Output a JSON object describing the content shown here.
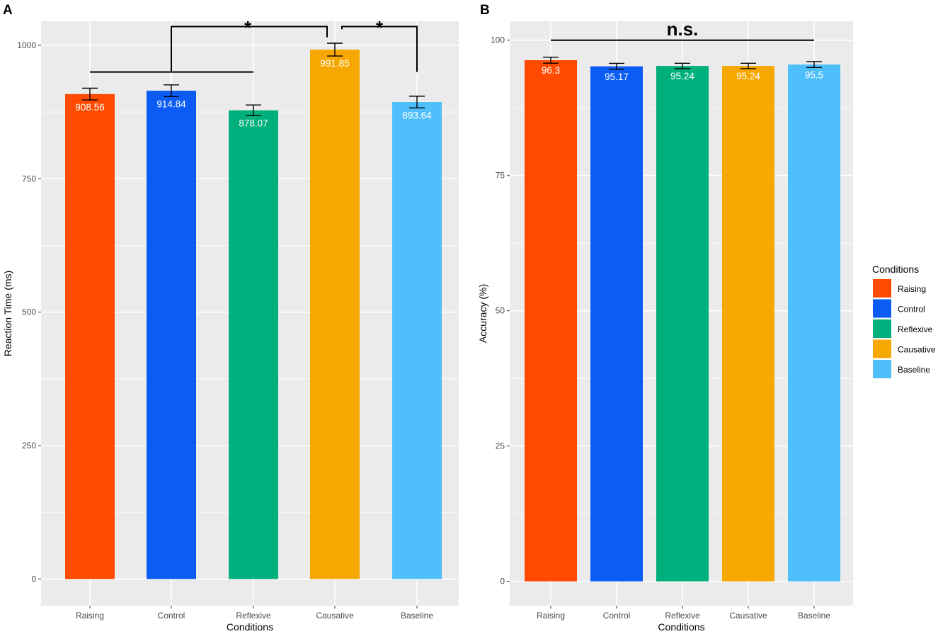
{
  "figure": {
    "legend": {
      "title": "Conditions",
      "entries": [
        {
          "label": "Raising",
          "color": "#FF4A00"
        },
        {
          "label": "Control",
          "color": "#0A5CF5"
        },
        {
          "label": "Reflexive",
          "color": "#00B07C"
        },
        {
          "label": "Causative",
          "color": "#F7A800"
        },
        {
          "label": "Baseline",
          "color": "#4FBFFC"
        }
      ]
    }
  },
  "chart_data": [
    {
      "panel": "A",
      "type": "bar",
      "categories": [
        "Raising",
        "Control",
        "Reflexive",
        "Causative",
        "Baseline"
      ],
      "values": [
        908.56,
        914.84,
        878.07,
        991.85,
        893.64
      ],
      "value_labels": [
        "908.56",
        "914.84",
        "878.07",
        "991.85",
        "893.64"
      ],
      "error": [
        11,
        11,
        10,
        12,
        11
      ],
      "colors": [
        "#FF4A00",
        "#0A5CF5",
        "#00B07C",
        "#F7A800",
        "#4FBFFC"
      ],
      "xlabel": "Conditions",
      "ylabel": "Reaction Time (ms)",
      "ylim": [
        -50,
        1045
      ],
      "yticks": [
        0,
        250,
        500,
        750,
        1000
      ],
      "ytick_labels": [
        "0",
        "250",
        "500",
        "750",
        "1000"
      ],
      "grid": true,
      "significance": [
        {
          "label": "*",
          "left": [
            "Raising",
            "Control",
            "Reflexive"
          ],
          "right": [
            "Causative"
          ],
          "level": [
            950,
            1035
          ]
        },
        {
          "label": "*",
          "left": [
            "Causative"
          ],
          "right": [
            "Baseline"
          ],
          "level": [
            950,
            1035
          ]
        }
      ]
    },
    {
      "panel": "B",
      "type": "bar",
      "categories": [
        "Raising",
        "Control",
        "Reflexive",
        "Causative",
        "Baseline"
      ],
      "values": [
        96.3,
        95.17,
        95.24,
        95.24,
        95.5
      ],
      "value_labels": [
        "96.3",
        "95.17",
        "95.24",
        "95.24",
        "95.5"
      ],
      "error": [
        0.55,
        0.55,
        0.5,
        0.5,
        0.55
      ],
      "colors": [
        "#FF4A00",
        "#0A5CF5",
        "#00B07C",
        "#F7A800",
        "#4FBFFC"
      ],
      "xlabel": "Conditions",
      "ylabel": "Accuracy (%)",
      "ylim": [
        -4.5,
        103.5
      ],
      "yticks": [
        0,
        25,
        50,
        75,
        100
      ],
      "ytick_labels": [
        "0",
        "25",
        "50",
        "75",
        "100"
      ],
      "grid": true,
      "significance": [
        {
          "label": "n.s.",
          "left": [
            "Raising"
          ],
          "right": [
            "Baseline"
          ],
          "level": [
            100
          ]
        }
      ]
    }
  ]
}
